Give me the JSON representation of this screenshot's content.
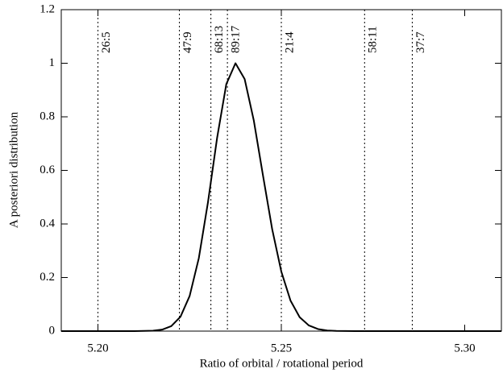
{
  "chart_data": {
    "type": "line",
    "xlabel": "Ratio of orbital / rotational period",
    "ylabel": "A posteriori distribution",
    "x": [
      5.19,
      5.2,
      5.21,
      5.215,
      5.2175,
      5.22,
      5.2225,
      5.225,
      5.2275,
      5.23,
      5.2325,
      5.235,
      5.2375,
      5.24,
      5.2425,
      5.245,
      5.2475,
      5.25,
      5.2525,
      5.255,
      5.2575,
      5.26,
      5.2625,
      5.265,
      5.27,
      5.28,
      5.31
    ],
    "values": [
      0,
      0,
      0,
      0.0014,
      0.0055,
      0.0186,
      0.0536,
      0.131,
      0.272,
      0.481,
      0.722,
      0.922,
      1,
      0.941,
      0.786,
      0.581,
      0.381,
      0.222,
      0.114,
      0.052,
      0.0211,
      0.0076,
      0.0024,
      0.0007,
      0,
      0,
      0
    ],
    "color": "#000000",
    "xlim": [
      5.19,
      5.31
    ],
    "ylim": [
      0,
      1.2
    ],
    "xticks": [
      {
        "value": 5.2,
        "label": "5.20"
      },
      {
        "value": 5.25,
        "label": "5.25"
      },
      {
        "value": 5.3,
        "label": "5.30"
      }
    ],
    "yticks": [
      0,
      0.2,
      0.4,
      0.6,
      0.8,
      1,
      1.2
    ],
    "annotations": [
      {
        "label": "26:5",
        "x": 5.2
      },
      {
        "label": "47:9",
        "x": 5.2222
      },
      {
        "label": "68:13",
        "x": 5.2308
      },
      {
        "label": "89:17",
        "x": 5.2353
      },
      {
        "label": "21:4",
        "x": 5.25
      },
      {
        "label": "58:11",
        "x": 5.2727
      },
      {
        "label": "37:7",
        "x": 5.2857
      }
    ],
    "grid": false
  }
}
